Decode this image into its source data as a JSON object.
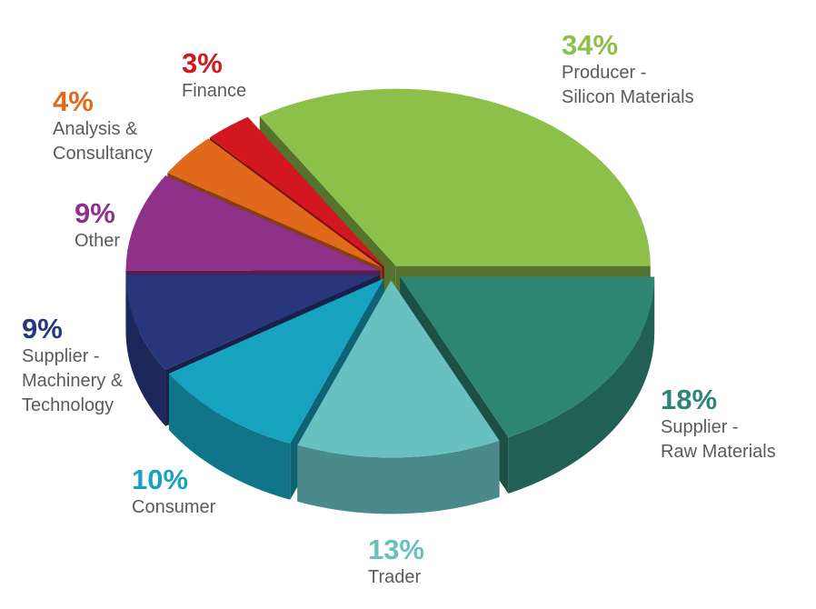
{
  "chart_data": {
    "type": "pie",
    "style": "3d-exploded",
    "slices": [
      {
        "label": "Producer - Silicon Materials",
        "lines": [
          "Producer -",
          "Silicon Materials"
        ],
        "pct_label": "34%",
        "value": 34,
        "color": "#8dc04a"
      },
      {
        "label": "Supplier - Raw Materials",
        "lines": [
          "Supplier -",
          "Raw Materials"
        ],
        "pct_label": "18%",
        "value": 18,
        "color": "#2e8574"
      },
      {
        "label": "Trader",
        "lines": [
          "Trader"
        ],
        "pct_label": "13%",
        "value": 13,
        "color": "#68c0c0"
      },
      {
        "label": "Consumer",
        "lines": [
          "Consumer"
        ],
        "pct_label": "10%",
        "value": 10,
        "color": "#17a3c0"
      },
      {
        "label": "Supplier - Machinery & Technology",
        "lines": [
          "Supplier -",
          "Machinery &",
          "Technology"
        ],
        "pct_label": "9%",
        "value": 9,
        "color": "#28367b"
      },
      {
        "label": "Other",
        "lines": [
          "Other"
        ],
        "pct_label": "9%",
        "value": 9,
        "color": "#8f3189"
      },
      {
        "label": "Analysis & Consultancy",
        "lines": [
          "Analysis &",
          "Consultancy"
        ],
        "pct_label": "4%",
        "value": 4,
        "color": "#e0691b"
      },
      {
        "label": "Finance",
        "lines": [
          "Finance"
        ],
        "pct_label": "3%",
        "value": 3,
        "color": "#d3171f"
      }
    ]
  }
}
